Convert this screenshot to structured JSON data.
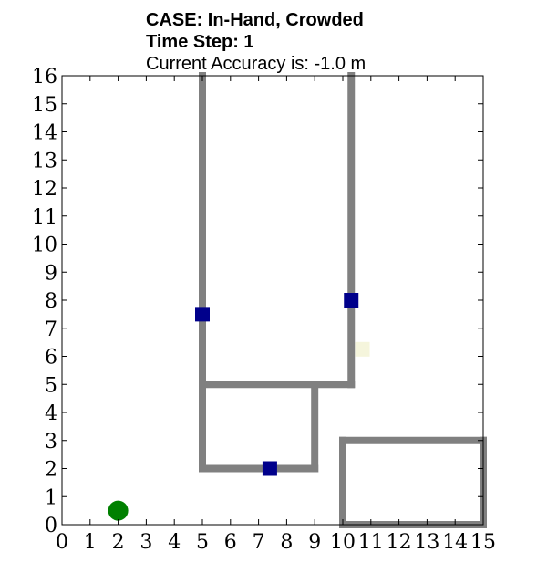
{
  "title": {
    "line1": "CASE: In-Hand, Crowded",
    "line2": "Time Step: 1",
    "line3": "Current Accuracy is: -1.0 m"
  },
  "chart_data": {
    "type": "scatter",
    "xlim": [
      0,
      15
    ],
    "ylim": [
      0,
      16
    ],
    "xticks": [
      0,
      1,
      2,
      3,
      4,
      5,
      6,
      7,
      8,
      9,
      10,
      11,
      12,
      13,
      14,
      15
    ],
    "yticks": [
      0,
      1,
      2,
      3,
      4,
      5,
      6,
      7,
      8,
      9,
      10,
      11,
      12,
      13,
      14,
      15,
      16
    ],
    "grid": false,
    "walls": {
      "color": "#808080",
      "segments": [
        [
          [
            5,
            16
          ],
          [
            5,
            2
          ]
        ],
        [
          [
            10.3,
            16
          ],
          [
            10.3,
            5
          ]
        ],
        [
          [
            5,
            5
          ],
          [
            10.3,
            5
          ]
        ],
        [
          [
            5,
            2
          ],
          [
            9,
            2
          ]
        ],
        [
          [
            9,
            2
          ],
          [
            9,
            5
          ]
        ],
        [
          [
            10,
            0
          ],
          [
            10,
            3
          ]
        ],
        [
          [
            10,
            3
          ],
          [
            15,
            3
          ]
        ],
        [
          [
            10,
            0
          ],
          [
            15,
            0
          ]
        ],
        [
          [
            15,
            0
          ],
          [
            15,
            3
          ]
        ]
      ]
    },
    "series": [
      {
        "marker": "square",
        "color": "#00008b",
        "points": [
          [
            5,
            7.5
          ],
          [
            10.3,
            8
          ],
          [
            7.4,
            2
          ]
        ]
      },
      {
        "marker": "square",
        "color": "#f5f5dc",
        "points": [
          [
            10.7,
            6.25
          ]
        ]
      },
      {
        "marker": "circle",
        "color": "#008000",
        "points": [
          [
            2,
            0.5
          ]
        ]
      }
    ]
  }
}
